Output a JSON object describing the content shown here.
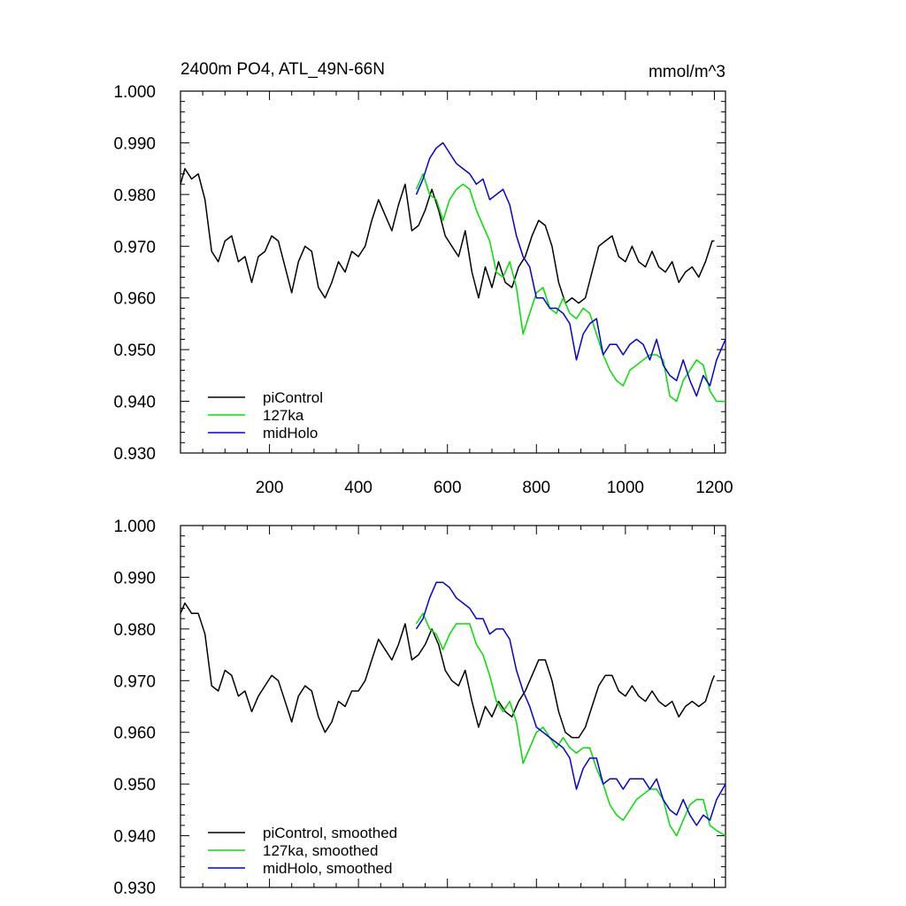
{
  "figure": {
    "title_left": "2400m PO4, ATL_49N-66N",
    "title_right": "mmol/m^3"
  },
  "chart_data": [
    {
      "type": "line",
      "panel": "top",
      "xlim": [
        0,
        1225
      ],
      "ylim": [
        0.93,
        1.0
      ],
      "xticks": [
        200,
        400,
        600,
        800,
        1000,
        1200
      ],
      "xtick_labels": [
        "200",
        "400",
        "600",
        "800",
        "1000",
        "1200"
      ],
      "yticks": [
        0.93,
        0.94,
        0.95,
        0.96,
        0.97,
        0.98,
        0.99,
        1.0
      ],
      "ytick_labels": [
        "0.930",
        "0.940",
        "0.950",
        "0.960",
        "0.970",
        "0.980",
        "0.990",
        "1.000"
      ],
      "legend_position": "bottom-left",
      "series": [
        {
          "name": "piControl",
          "color": "#000000",
          "x": [
            0,
            10,
            25,
            40,
            55,
            70,
            85,
            100,
            115,
            130,
            145,
            160,
            175,
            190,
            205,
            220,
            235,
            250,
            265,
            280,
            295,
            310,
            325,
            340,
            355,
            370,
            385,
            400,
            415,
            430,
            445,
            460,
            475,
            490,
            505,
            520,
            535,
            550,
            565,
            580,
            595,
            610,
            625,
            640,
            655,
            670,
            685,
            700,
            715,
            730,
            745,
            760,
            775,
            790,
            805,
            820,
            835,
            850,
            865,
            880,
            895,
            910,
            925,
            940,
            955,
            970,
            985,
            1000,
            1015,
            1030,
            1045,
            1060,
            1075,
            1090,
            1105,
            1120,
            1135,
            1150,
            1165,
            1180,
            1195,
            1200
          ],
          "y": [
            0.982,
            0.985,
            0.983,
            0.984,
            0.979,
            0.969,
            0.967,
            0.971,
            0.972,
            0.967,
            0.968,
            0.963,
            0.968,
            0.969,
            0.972,
            0.971,
            0.966,
            0.961,
            0.967,
            0.97,
            0.969,
            0.962,
            0.96,
            0.963,
            0.967,
            0.965,
            0.969,
            0.968,
            0.97,
            0.975,
            0.979,
            0.976,
            0.973,
            0.978,
            0.982,
            0.973,
            0.974,
            0.977,
            0.981,
            0.977,
            0.972,
            0.97,
            0.968,
            0.973,
            0.965,
            0.96,
            0.966,
            0.962,
            0.967,
            0.963,
            0.962,
            0.966,
            0.968,
            0.972,
            0.975,
            0.974,
            0.97,
            0.963,
            0.959,
            0.96,
            0.959,
            0.96,
            0.965,
            0.97,
            0.971,
            0.972,
            0.968,
            0.967,
            0.97,
            0.967,
            0.966,
            0.969,
            0.966,
            0.965,
            0.967,
            0.963,
            0.965,
            0.966,
            0.964,
            0.967,
            0.971,
            0.971
          ]
        },
        {
          "name": "127ka",
          "color": "#00e000",
          "x": [
            530,
            545,
            560,
            575,
            590,
            605,
            620,
            635,
            650,
            665,
            680,
            695,
            710,
            725,
            740,
            755,
            770,
            785,
            800,
            815,
            830,
            845,
            860,
            875,
            890,
            905,
            920,
            935,
            950,
            965,
            980,
            995,
            1010,
            1025,
            1040,
            1055,
            1070,
            1085,
            1100,
            1115,
            1130,
            1145,
            1160,
            1175,
            1190,
            1205,
            1225
          ],
          "y": [
            0.981,
            0.984,
            0.98,
            0.979,
            0.975,
            0.979,
            0.981,
            0.982,
            0.981,
            0.977,
            0.974,
            0.971,
            0.965,
            0.964,
            0.967,
            0.962,
            0.953,
            0.957,
            0.961,
            0.962,
            0.958,
            0.957,
            0.96,
            0.957,
            0.956,
            0.958,
            0.957,
            0.953,
            0.949,
            0.946,
            0.944,
            0.943,
            0.946,
            0.947,
            0.948,
            0.949,
            0.949,
            0.948,
            0.941,
            0.94,
            0.944,
            0.946,
            0.948,
            0.947,
            0.942,
            0.94,
            0.94
          ]
        },
        {
          "name": "midHolo",
          "color": "#0000e0",
          "x": [
            530,
            545,
            560,
            575,
            590,
            605,
            620,
            635,
            650,
            665,
            680,
            695,
            710,
            725,
            740,
            755,
            770,
            785,
            800,
            815,
            830,
            845,
            860,
            875,
            890,
            905,
            920,
            935,
            950,
            965,
            980,
            995,
            1010,
            1025,
            1040,
            1055,
            1070,
            1085,
            1100,
            1115,
            1130,
            1145,
            1160,
            1175,
            1190,
            1205,
            1225
          ],
          "y": [
            0.98,
            0.983,
            0.987,
            0.989,
            0.99,
            0.988,
            0.986,
            0.985,
            0.984,
            0.982,
            0.983,
            0.979,
            0.98,
            0.981,
            0.978,
            0.972,
            0.968,
            0.966,
            0.96,
            0.96,
            0.958,
            0.958,
            0.957,
            0.955,
            0.948,
            0.953,
            0.955,
            0.956,
            0.949,
            0.951,
            0.951,
            0.949,
            0.951,
            0.952,
            0.951,
            0.948,
            0.952,
            0.947,
            0.945,
            0.944,
            0.948,
            0.944,
            0.941,
            0.945,
            0.943,
            0.948,
            0.952
          ]
        }
      ]
    },
    {
      "type": "line",
      "panel": "bottom",
      "xlim": [
        0,
        1225
      ],
      "ylim": [
        0.93,
        1.0
      ],
      "xticks": [
        200,
        400,
        600,
        800,
        1000,
        1200
      ],
      "xtick_labels": [],
      "yticks": [
        0.93,
        0.94,
        0.95,
        0.96,
        0.97,
        0.98,
        0.99,
        1.0
      ],
      "ytick_labels": [
        "0.930",
        "0.940",
        "0.950",
        "0.960",
        "0.970",
        "0.980",
        "0.990",
        "1.000"
      ],
      "legend_position": "bottom-left",
      "series": [
        {
          "name": "piControl, smoothed",
          "color": "#000000",
          "x": [
            0,
            10,
            25,
            40,
            55,
            70,
            85,
            100,
            115,
            130,
            145,
            160,
            175,
            190,
            205,
            220,
            235,
            250,
            265,
            280,
            295,
            310,
            325,
            340,
            355,
            370,
            385,
            400,
            415,
            430,
            445,
            460,
            475,
            490,
            505,
            520,
            535,
            550,
            565,
            580,
            595,
            610,
            625,
            640,
            655,
            670,
            685,
            700,
            715,
            730,
            745,
            760,
            775,
            790,
            805,
            820,
            835,
            850,
            865,
            880,
            895,
            910,
            925,
            940,
            955,
            970,
            985,
            1000,
            1015,
            1030,
            1045,
            1060,
            1075,
            1090,
            1105,
            1120,
            1135,
            1150,
            1165,
            1180,
            1195,
            1200
          ],
          "y": [
            0.983,
            0.985,
            0.983,
            0.983,
            0.979,
            0.969,
            0.968,
            0.972,
            0.971,
            0.967,
            0.968,
            0.964,
            0.967,
            0.969,
            0.971,
            0.97,
            0.966,
            0.962,
            0.967,
            0.969,
            0.968,
            0.963,
            0.96,
            0.962,
            0.966,
            0.965,
            0.968,
            0.968,
            0.97,
            0.974,
            0.978,
            0.976,
            0.974,
            0.977,
            0.981,
            0.974,
            0.975,
            0.977,
            0.98,
            0.977,
            0.972,
            0.97,
            0.969,
            0.972,
            0.966,
            0.961,
            0.965,
            0.963,
            0.966,
            0.964,
            0.963,
            0.966,
            0.968,
            0.971,
            0.974,
            0.974,
            0.97,
            0.964,
            0.96,
            0.959,
            0.959,
            0.961,
            0.965,
            0.969,
            0.971,
            0.971,
            0.968,
            0.967,
            0.969,
            0.967,
            0.966,
            0.968,
            0.966,
            0.965,
            0.966,
            0.963,
            0.965,
            0.966,
            0.965,
            0.966,
            0.97,
            0.971
          ]
        },
        {
          "name": "127ka, smoothed",
          "color": "#00e000",
          "x": [
            530,
            545,
            560,
            575,
            590,
            605,
            620,
            635,
            650,
            665,
            680,
            695,
            710,
            725,
            740,
            755,
            770,
            785,
            800,
            815,
            830,
            845,
            860,
            875,
            890,
            905,
            920,
            935,
            950,
            965,
            980,
            995,
            1010,
            1025,
            1040,
            1055,
            1070,
            1085,
            1100,
            1115,
            1130,
            1145,
            1160,
            1175,
            1190,
            1205,
            1225
          ],
          "y": [
            0.981,
            0.983,
            0.98,
            0.979,
            0.976,
            0.979,
            0.981,
            0.981,
            0.981,
            0.977,
            0.975,
            0.971,
            0.966,
            0.964,
            0.966,
            0.962,
            0.954,
            0.957,
            0.96,
            0.961,
            0.959,
            0.957,
            0.959,
            0.957,
            0.956,
            0.957,
            0.957,
            0.953,
            0.95,
            0.946,
            0.944,
            0.943,
            0.945,
            0.947,
            0.948,
            0.949,
            0.949,
            0.947,
            0.942,
            0.94,
            0.943,
            0.946,
            0.947,
            0.947,
            0.942,
            0.941,
            0.94
          ]
        },
        {
          "name": "midHolo, smoothed",
          "color": "#0000e0",
          "x": [
            530,
            545,
            560,
            575,
            590,
            605,
            620,
            635,
            650,
            665,
            680,
            695,
            710,
            725,
            740,
            755,
            770,
            785,
            800,
            815,
            830,
            845,
            860,
            875,
            890,
            905,
            920,
            935,
            950,
            965,
            980,
            995,
            1010,
            1025,
            1040,
            1055,
            1070,
            1085,
            1100,
            1115,
            1130,
            1145,
            1160,
            1175,
            1190,
            1205,
            1225
          ],
          "y": [
            0.98,
            0.982,
            0.986,
            0.989,
            0.989,
            0.988,
            0.986,
            0.985,
            0.984,
            0.982,
            0.982,
            0.979,
            0.98,
            0.98,
            0.978,
            0.972,
            0.968,
            0.965,
            0.961,
            0.96,
            0.959,
            0.958,
            0.957,
            0.955,
            0.949,
            0.953,
            0.955,
            0.955,
            0.95,
            0.951,
            0.951,
            0.949,
            0.951,
            0.951,
            0.951,
            0.949,
            0.951,
            0.947,
            0.945,
            0.944,
            0.947,
            0.944,
            0.942,
            0.944,
            0.943,
            0.947,
            0.95
          ]
        }
      ]
    }
  ]
}
